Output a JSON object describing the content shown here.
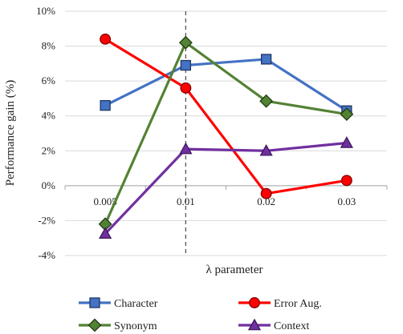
{
  "chart_data": {
    "type": "line",
    "title": "",
    "xlabel": "λ parameter",
    "ylabel": "Performance gain (%)",
    "categories": [
      "0.005",
      "0.01",
      "0.02",
      "0.03"
    ],
    "ylim": [
      -4,
      10
    ],
    "yticks": [
      -4,
      -2,
      0,
      2,
      4,
      6,
      8,
      10
    ],
    "ytick_labels": [
      "-4%",
      "-2%",
      "0%",
      "2%",
      "4%",
      "6%",
      "8%",
      "10%"
    ],
    "grid": "horizontal",
    "reference_line": {
      "category": "0.01",
      "style": "dashed"
    },
    "legend_position": "bottom",
    "series": [
      {
        "name": "Character",
        "color": "#4472C4",
        "marker": "square",
        "values": [
          4.6,
          6.9,
          7.25,
          4.3
        ]
      },
      {
        "name": "Error Aug.",
        "color": "#FF0000",
        "marker": "circle",
        "values": [
          8.4,
          5.6,
          -0.45,
          0.3
        ]
      },
      {
        "name": "Synonym",
        "color": "#548235",
        "marker": "diamond",
        "values": [
          -2.2,
          8.2,
          4.85,
          4.1
        ]
      },
      {
        "name": "Context",
        "color": "#7030A0",
        "marker": "triangle",
        "values": [
          -2.75,
          2.1,
          2.0,
          2.45
        ]
      }
    ]
  }
}
